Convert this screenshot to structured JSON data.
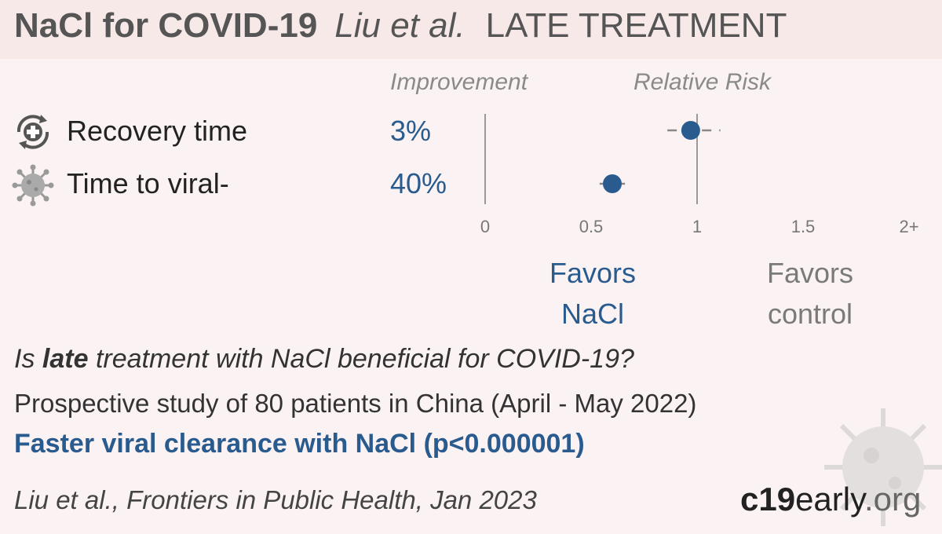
{
  "header": {
    "treatment_title": "NaCl for COVID-19",
    "authors": "Liu et al.",
    "stage": "LATE TREATMENT"
  },
  "columns": {
    "improvement": "Improvement",
    "relative_risk": "Relative Risk"
  },
  "rows": [
    {
      "label": "Recovery time",
      "improvement": "3%",
      "icon": "recovery-clock-icon"
    },
    {
      "label": "Time to viral-",
      "improvement": "40%",
      "icon": "virus-icon"
    }
  ],
  "favors": {
    "left_line1": "Favors",
    "left_line2": "NaCl",
    "right_line1": "Favors",
    "right_line2": "control"
  },
  "question": {
    "pre": "Is ",
    "bold": "late",
    "post": " treatment with NaCl beneficial for COVID-19?"
  },
  "study": "Prospective study of 80 patients in China (April - May 2022)",
  "result": "Faster viral clearance with NaCl (p<0.000001)",
  "citation": "Liu et al., Frontiers in Public Health, Jan 2023",
  "brand": {
    "part1": "c19",
    "part2": "early",
    "part3": ".org"
  },
  "colors": {
    "accent": "#2a5b8f",
    "header_bg": "#f6e9e8",
    "page_bg": "#fbf3f3",
    "ci_line": "#999999"
  },
  "chart_data": {
    "type": "scatter",
    "x_ticks": [
      "0",
      "0.5",
      "1",
      "1.5",
      "2+"
    ],
    "xlim": [
      0,
      2
    ],
    "reference_line": 1,
    "series": [
      {
        "label": "Recovery time",
        "value": 0.97,
        "ci": [
          0.86,
          1.11
        ]
      },
      {
        "label": "Time to viral-",
        "value": 0.6,
        "ci": [
          0.54,
          0.66
        ]
      }
    ]
  }
}
